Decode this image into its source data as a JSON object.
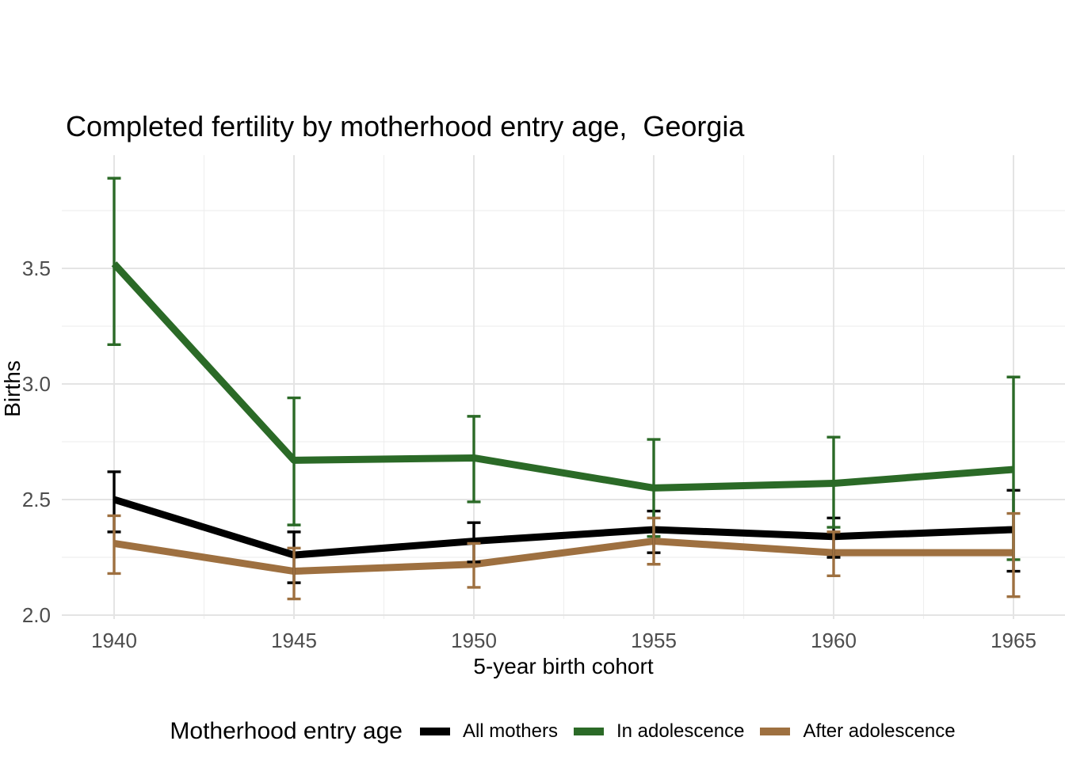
{
  "title": "Completed fertility by motherhood entry age,  Georgia",
  "axes": {
    "x": {
      "label": "5-year birth cohort",
      "tick_values": [
        1940,
        1945,
        1950,
        1955,
        1960,
        1965
      ],
      "tick_labels": [
        "1940",
        "1945",
        "1950",
        "1955",
        "1960",
        "1965"
      ]
    },
    "y": {
      "label": "Births",
      "tick_values": [
        2.0,
        2.5,
        3.0,
        3.5
      ],
      "tick_labels": [
        "2.0",
        "2.5",
        "3.0",
        "3.5"
      ]
    }
  },
  "legend": {
    "title": "Motherhood entry age",
    "items": [
      "All mothers",
      "In adolescence",
      "After adolescence"
    ]
  },
  "colors": {
    "all_mothers": "#000000",
    "in_adolescence": "#2b6a27",
    "after_adolescence": "#9e7040",
    "grid_major": "#e4e4e4",
    "grid_minor": "#efefef",
    "tick_text": "#4d4d4d"
  },
  "chart_data": {
    "type": "line",
    "title": "Completed fertility by motherhood entry age,  Georgia",
    "xlabel": "5-year birth cohort",
    "ylabel": "Births",
    "x": [
      1940,
      1945,
      1950,
      1955,
      1960,
      1965
    ],
    "xlim": [
      1938.5,
      1966.5
    ],
    "ylim": [
      1.98,
      3.99
    ],
    "grid": "major and minor, light gray on white",
    "legend_position": "bottom",
    "error_bars": true,
    "series": [
      {
        "name": "All mothers",
        "color": "#000000",
        "values": [
          2.5,
          2.26,
          2.32,
          2.37,
          2.34,
          2.37
        ],
        "ci_low": [
          2.36,
          2.14,
          2.23,
          2.27,
          2.25,
          2.19
        ],
        "ci_high": [
          2.62,
          2.36,
          2.4,
          2.45,
          2.42,
          2.54
        ]
      },
      {
        "name": "In adolescence",
        "color": "#2b6a27",
        "values": [
          3.52,
          2.67,
          2.68,
          2.55,
          2.57,
          2.63
        ],
        "ci_low": [
          3.17,
          2.39,
          2.49,
          2.34,
          2.38,
          2.24
        ],
        "ci_high": [
          3.89,
          2.94,
          2.86,
          2.76,
          2.77,
          3.03
        ]
      },
      {
        "name": "After adolescence",
        "color": "#9e7040",
        "values": [
          2.31,
          2.19,
          2.22,
          2.32,
          2.27,
          2.27
        ],
        "ci_low": [
          2.18,
          2.07,
          2.12,
          2.22,
          2.17,
          2.08
        ],
        "ci_high": [
          2.43,
          2.29,
          2.31,
          2.42,
          2.36,
          2.44
        ]
      }
    ]
  }
}
